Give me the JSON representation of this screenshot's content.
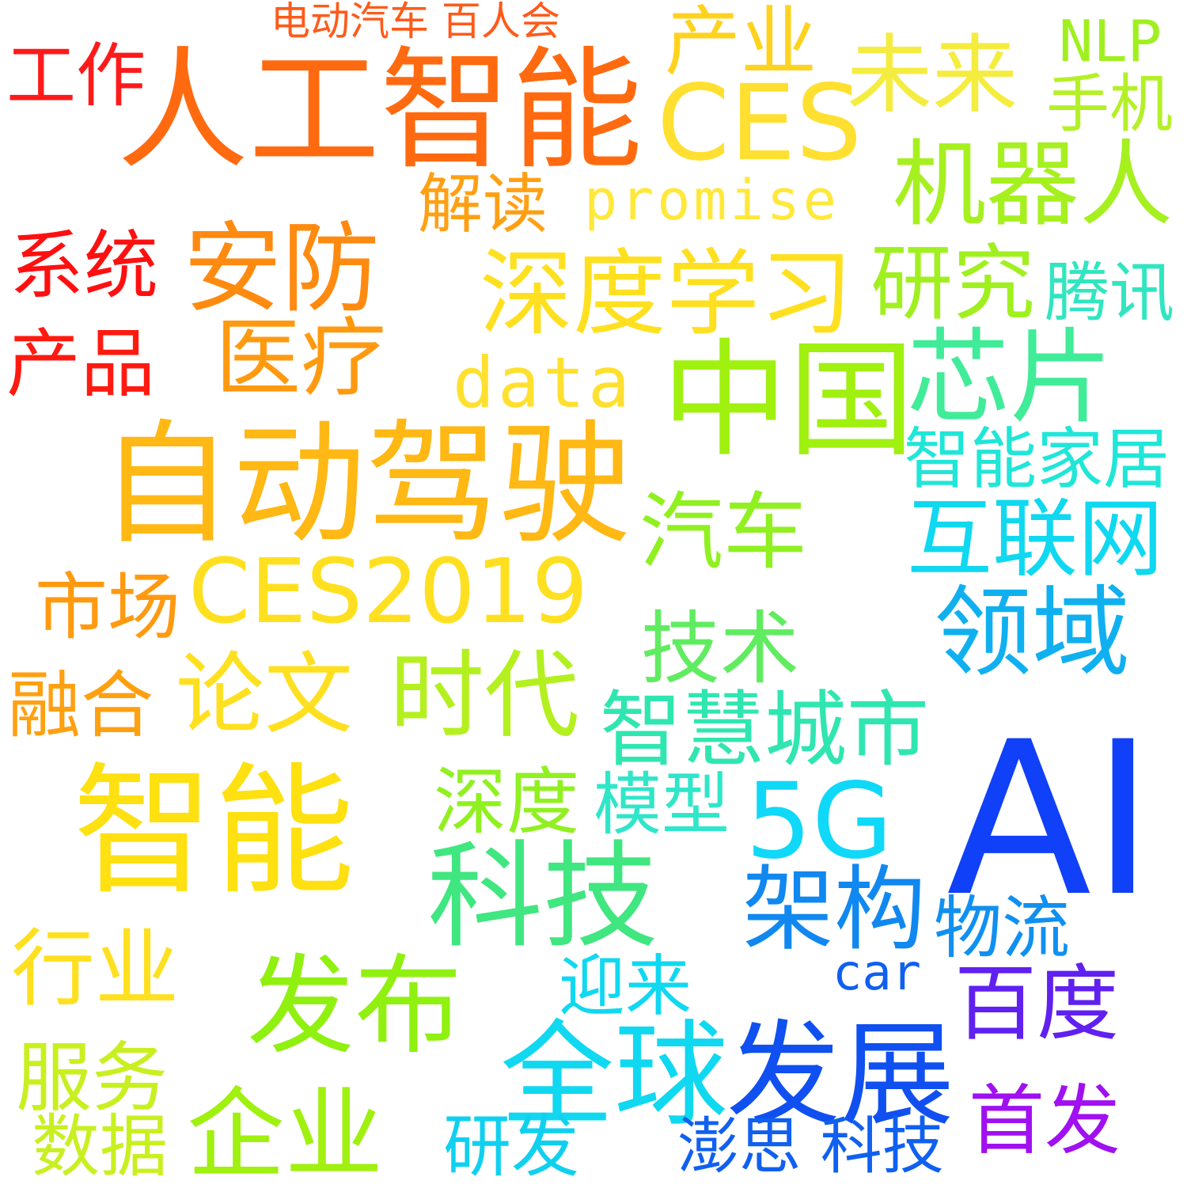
{
  "words": [
    {
      "text": "工作",
      "color": "#ff1a1a"
    },
    {
      "text": "电动汽车 百人会",
      "color": "#ff5a1a"
    },
    {
      "text": "人工智能",
      "color": "#ff6a10"
    },
    {
      "text": "产业",
      "color": "#ffd21e"
    },
    {
      "text": "CES",
      "color": "#ffe030"
    },
    {
      "text": "未来",
      "color": "#f5ec40"
    },
    {
      "text": "NLP",
      "color": "#a0f020"
    },
    {
      "text": "手机",
      "color": "#b4f028"
    },
    {
      "text": "解读",
      "color": "#ffa014"
    },
    {
      "text": "promise",
      "color": "#ffe83a"
    },
    {
      "text": "机器人",
      "color": "#a6f020"
    },
    {
      "text": "系统",
      "color": "#ff1010"
    },
    {
      "text": "安防",
      "color": "#ff8a10"
    },
    {
      "text": "深度学习",
      "color": "#ffe020"
    },
    {
      "text": "研究",
      "color": "#a0f020"
    },
    {
      "text": "腾讯",
      "color": "#30e6c0"
    },
    {
      "text": "医疗",
      "color": "#ff9a10"
    },
    {
      "text": "产品",
      "color": "#ff1a10"
    },
    {
      "text": "data",
      "color": "#ffe030"
    },
    {
      "text": "中国",
      "color": "#a0f010"
    },
    {
      "text": "芯片",
      "color": "#40ec98"
    },
    {
      "text": "智能家居",
      "color": "#20e6d8"
    },
    {
      "text": "自动驾驶",
      "color": "#ffb814"
    },
    {
      "text": "汽车",
      "color": "#90f020"
    },
    {
      "text": "互联网",
      "color": "#10d8f0"
    },
    {
      "text": "市场",
      "color": "#ff9a10"
    },
    {
      "text": "CES2019",
      "color": "#ffe020"
    },
    {
      "text": "领域",
      "color": "#10b0f0"
    },
    {
      "text": "技术",
      "color": "#60ec60"
    },
    {
      "text": "融合",
      "color": "#ffa010"
    },
    {
      "text": "论文",
      "color": "#ffe020"
    },
    {
      "text": "时代",
      "color": "#b4f020"
    },
    {
      "text": "智慧城市",
      "color": "#30e6b0"
    },
    {
      "text": "AI",
      "color": "#1040f8"
    },
    {
      "text": "智能",
      "color": "#ffe010"
    },
    {
      "text": "深度",
      "color": "#90f020"
    },
    {
      "text": "模型",
      "color": "#30e6c8"
    },
    {
      "text": "5G",
      "color": "#10d8f8"
    },
    {
      "text": "科技",
      "color": "#40e680"
    },
    {
      "text": "架构",
      "color": "#1088f0"
    },
    {
      "text": "物流",
      "color": "#1090f0"
    },
    {
      "text": "行业",
      "color": "#ffe020"
    },
    {
      "text": "car",
      "color": "#1060f0"
    },
    {
      "text": "发布",
      "color": "#90f010"
    },
    {
      "text": "迎来",
      "color": "#10d8f0"
    },
    {
      "text": "百度",
      "color": "#6020f0"
    },
    {
      "text": "全球",
      "color": "#10d8f0"
    },
    {
      "text": "发展",
      "color": "#1050f0"
    },
    {
      "text": "服务",
      "color": "#c8f020"
    },
    {
      "text": "首发",
      "color": "#a010f0"
    },
    {
      "text": "企业",
      "color": "#a0f010"
    },
    {
      "text": "数据",
      "color": "#c8f020"
    },
    {
      "text": "研发",
      "color": "#10d0f0"
    },
    {
      "text": "澎思 科技",
      "color": "#1060f0"
    }
  ]
}
